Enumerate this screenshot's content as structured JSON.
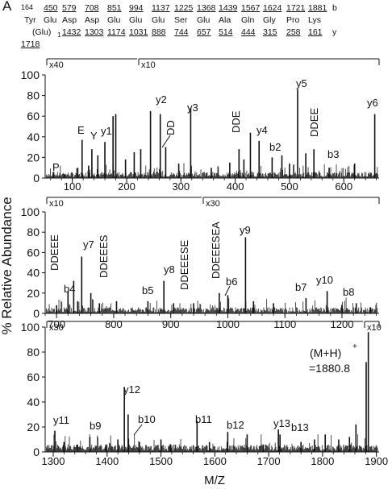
{
  "figure": {
    "panel_letter": "A",
    "ylabel": "% Relative Abundance",
    "xlabel": "M/Z"
  },
  "sequence": {
    "top_prefix": "164",
    "top_line_b": [
      "450",
      "579",
      "708",
      "851",
      "994",
      "1137",
      "1225",
      "1368",
      "1439",
      "1567",
      "1624",
      "1721",
      "1881"
    ],
    "b_label": "b",
    "residues": [
      "Tyr",
      "Glu",
      "Asp",
      "Asp",
      "Glu",
      "Glu",
      "Glu",
      "Ser",
      "Glu",
      "Ala",
      "Gln",
      "Gly",
      "Pro",
      "Lys"
    ],
    "bottom_prefix": "(Glu)",
    "bottom_prefix_sub": "1",
    "bottom_line_y": [
      "1432",
      "1303",
      "1174",
      "1031",
      "888",
      "744",
      "657",
      "514",
      "444",
      "315",
      "258",
      "161"
    ],
    "y_label": "y",
    "wrapped_y": "1718"
  },
  "chart_data": [
    {
      "type": "bar",
      "xlim": [
        50,
        665
      ],
      "ylim": [
        0,
        100
      ],
      "yticks": [
        "0",
        "20",
        "40",
        "60",
        "80",
        "100"
      ],
      "xticks": [
        "100",
        "200",
        "300",
        "400",
        "500",
        "600"
      ],
      "magnification": [
        "x40",
        "x10"
      ],
      "peaks": [
        {
          "x": 65,
          "y": 6
        },
        {
          "x": 85,
          "y": 4
        },
        {
          "x": 110,
          "y": 10
        },
        {
          "x": 118,
          "y": 37
        },
        {
          "x": 130,
          "y": 12
        },
        {
          "x": 136,
          "y": 28
        },
        {
          "x": 147,
          "y": 22
        },
        {
          "x": 160,
          "y": 35
        },
        {
          "x": 175,
          "y": 60
        },
        {
          "x": 180,
          "y": 62
        },
        {
          "x": 198,
          "y": 18
        },
        {
          "x": 214,
          "y": 25
        },
        {
          "x": 226,
          "y": 28
        },
        {
          "x": 244,
          "y": 65
        },
        {
          "x": 262,
          "y": 62
        },
        {
          "x": 272,
          "y": 30
        },
        {
          "x": 296,
          "y": 14
        },
        {
          "x": 318,
          "y": 68
        },
        {
          "x": 356,
          "y": 10
        },
        {
          "x": 390,
          "y": 15
        },
        {
          "x": 407,
          "y": 28
        },
        {
          "x": 416,
          "y": 18
        },
        {
          "x": 428,
          "y": 44
        },
        {
          "x": 444,
          "y": 36
        },
        {
          "x": 468,
          "y": 20
        },
        {
          "x": 486,
          "y": 22
        },
        {
          "x": 500,
          "y": 14
        },
        {
          "x": 515,
          "y": 86
        },
        {
          "x": 530,
          "y": 24
        },
        {
          "x": 545,
          "y": 28
        },
        {
          "x": 573,
          "y": 10
        },
        {
          "x": 620,
          "y": 14
        },
        {
          "x": 657,
          "y": 62
        }
      ],
      "annotations": [
        "P",
        "E",
        "Y",
        "y1",
        "y2",
        "DD",
        "y3",
        "DDE",
        "y4",
        "b2",
        "y5",
        "DDEE",
        "b3",
        "y6"
      ]
    },
    {
      "type": "bar",
      "xlim": [
        680,
        1265
      ],
      "ylim": [
        0,
        100
      ],
      "yticks": [
        "0",
        "20",
        "40",
        "60",
        "80",
        "100"
      ],
      "xticks": [
        "700",
        "800",
        "900",
        "1000",
        "1100",
        "1200"
      ],
      "magnification": [
        "x10",
        "x30"
      ],
      "peaks": [
        {
          "x": 700,
          "y": 8
        },
        {
          "x": 720,
          "y": 22
        },
        {
          "x": 730,
          "y": 32
        },
        {
          "x": 737,
          "y": 12
        },
        {
          "x": 744,
          "y": 56
        },
        {
          "x": 760,
          "y": 20
        },
        {
          "x": 775,
          "y": 10
        },
        {
          "x": 805,
          "y": 12
        },
        {
          "x": 860,
          "y": 12
        },
        {
          "x": 888,
          "y": 32
        },
        {
          "x": 905,
          "y": 10
        },
        {
          "x": 940,
          "y": 10
        },
        {
          "x": 985,
          "y": 20
        },
        {
          "x": 1000,
          "y": 18
        },
        {
          "x": 1031,
          "y": 75
        },
        {
          "x": 1045,
          "y": 12
        },
        {
          "x": 1080,
          "y": 10
        },
        {
          "x": 1137,
          "y": 15
        },
        {
          "x": 1174,
          "y": 22
        },
        {
          "x": 1200,
          "y": 8
        },
        {
          "x": 1225,
          "y": 10
        },
        {
          "x": 1250,
          "y": 6
        }
      ],
      "annotations": [
        "DDEEE",
        "b4",
        "y7",
        "DDEEES",
        "b5",
        "y8",
        "DDEEESE",
        "DDEEESEA",
        "b6",
        "y9",
        "b7",
        "y10",
        "b8"
      ]
    },
    {
      "type": "bar",
      "xlim": [
        1285,
        1905
      ],
      "ylim": [
        0,
        100
      ],
      "yticks": [
        "0",
        "20",
        "40",
        "60",
        "80",
        "100"
      ],
      "xticks": [
        "1300",
        "1400",
        "1500",
        "1600",
        "1700",
        "1800",
        "1900"
      ],
      "magnification": [
        "x30",
        "x10"
      ],
      "peaks": [
        {
          "x": 1303,
          "y": 17
        },
        {
          "x": 1320,
          "y": 8
        },
        {
          "x": 1345,
          "y": 6
        },
        {
          "x": 1368,
          "y": 12
        },
        {
          "x": 1398,
          "y": 6
        },
        {
          "x": 1420,
          "y": 10
        },
        {
          "x": 1432,
          "y": 52
        },
        {
          "x": 1439,
          "y": 30
        },
        {
          "x": 1460,
          "y": 8
        },
        {
          "x": 1500,
          "y": 10
        },
        {
          "x": 1518,
          "y": 6
        },
        {
          "x": 1567,
          "y": 25
        },
        {
          "x": 1590,
          "y": 8
        },
        {
          "x": 1624,
          "y": 16
        },
        {
          "x": 1660,
          "y": 14
        },
        {
          "x": 1690,
          "y": 6
        },
        {
          "x": 1718,
          "y": 18
        },
        {
          "x": 1721,
          "y": 14
        },
        {
          "x": 1760,
          "y": 8
        },
        {
          "x": 1785,
          "y": 10
        },
        {
          "x": 1805,
          "y": 14
        },
        {
          "x": 1830,
          "y": 10
        },
        {
          "x": 1850,
          "y": 12
        },
        {
          "x": 1862,
          "y": 22
        },
        {
          "x": 1881,
          "y": 72
        },
        {
          "x": 1885,
          "y": 96
        }
      ],
      "annotations": [
        "y11",
        "b9",
        "y12",
        "b10",
        "b11",
        "b12",
        "y13",
        "b13",
        "(M+H)",
        "+",
        "=1880.8"
      ]
    }
  ]
}
